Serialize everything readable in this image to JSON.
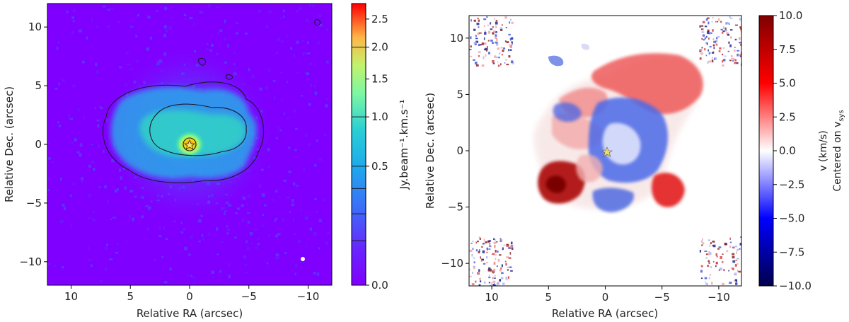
{
  "chart_data": [
    {
      "type": "heatmap",
      "panel": "moment-0 intensity map",
      "xlabel": "Relative RA (arcsec)",
      "ylabel": "Relative Dec. (arcsec)",
      "xlim": [
        12,
        -12
      ],
      "ylim": [
        -12,
        12
      ],
      "x_ticks": [
        10,
        5,
        0,
        -5,
        -10
      ],
      "x_tick_labels": [
        "10",
        "5",
        "0",
        "−5",
        "−10"
      ],
      "y_ticks": [
        10,
        5,
        0,
        -5,
        -10
      ],
      "y_tick_labels": [
        "10",
        "5",
        "0",
        "−5",
        "−10"
      ],
      "colormap": "rainbow",
      "colors": {
        "low": "#7f00ff",
        "mid": "#22c2d0",
        "high": "#ff0000"
      },
      "colorbar": {
        "label": "Jy.beam⁻¹.km.s⁻¹",
        "scale": "sqrt",
        "range": [
          0.0,
          2.8
        ],
        "ticks": [
          0.0,
          0.5,
          1.0,
          1.5,
          2.0,
          2.5
        ],
        "tick_labels": [
          "0.0",
          "0.5",
          "1.0",
          "1.5",
          "2.0",
          "2.5"
        ],
        "contour_levels": [
          0.07,
          0.18,
          0.33,
          0.5,
          1.0,
          2.0
        ]
      },
      "star_marker": {
        "x": 0,
        "y": 0
      },
      "beam_marker": {
        "x": -9.7,
        "y": -9.6
      }
    },
    {
      "type": "heatmap",
      "panel": "moment-1 velocity map",
      "xlabel": "Relative RA (arcsec)",
      "ylabel": "Relative Dec. (arcsec)",
      "xlim": [
        12,
        -12
      ],
      "ylim": [
        -12,
        12
      ],
      "x_ticks": [
        10,
        5,
        0,
        -5,
        -10
      ],
      "x_tick_labels": [
        "10",
        "5",
        "0",
        "−5",
        "−10"
      ],
      "y_ticks": [
        10,
        5,
        0,
        -5,
        -10
      ],
      "y_tick_labels": [
        "10",
        "5",
        "0",
        "−5",
        "−10"
      ],
      "colormap": "seismic",
      "colors": {
        "low": "#00004c",
        "mid": "#ffffff",
        "high": "#800000"
      },
      "colorbar": {
        "label_line1": "v (km/s)",
        "label_line2": "Centered on v",
        "label_line2_sub": "sys",
        "range": [
          -10.0,
          10.0
        ],
        "ticks": [
          10.0,
          7.5,
          5.0,
          2.5,
          0.0,
          -2.5,
          -5.0,
          -7.5,
          -10.0
        ],
        "tick_labels": [
          "10.0",
          "7.5",
          "5.0",
          "2.5",
          "0.0",
          "−2.5",
          "−5.0",
          "−7.5",
          "−10.0"
        ]
      },
      "star_marker": {
        "x": 0,
        "y": 0
      }
    }
  ]
}
